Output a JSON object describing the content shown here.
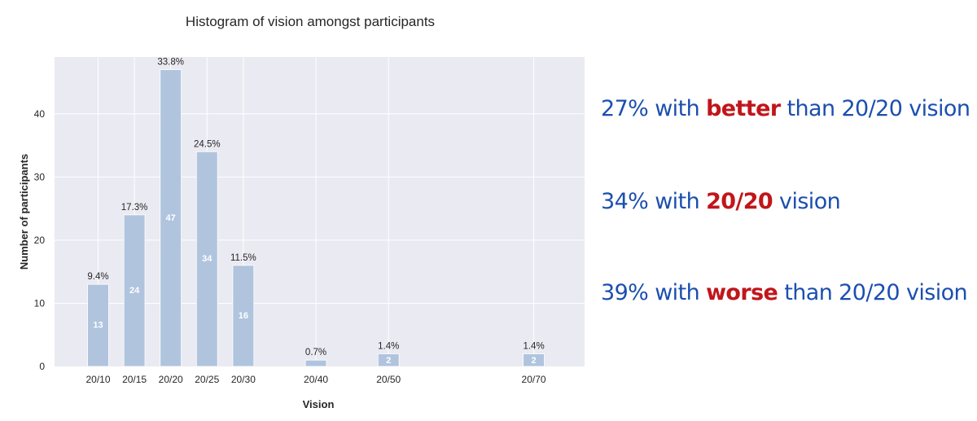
{
  "chart_data": {
    "type": "bar",
    "title": "Histogram of vision amongst participants",
    "xlabel": "Vision",
    "ylabel": "Number of participants",
    "ylim": [
      0,
      49
    ],
    "yticks": [
      0,
      10,
      20,
      30,
      40
    ],
    "x_scale": "denominator of Snellen fraction (20/x)",
    "x": [
      10,
      15,
      20,
      25,
      30,
      40,
      50,
      70
    ],
    "categories": [
      "20/10",
      "20/15",
      "20/20",
      "20/25",
      "20/30",
      "20/40",
      "20/50",
      "20/70"
    ],
    "values": [
      13,
      24,
      47,
      34,
      16,
      1,
      2,
      2
    ],
    "value_labels": [
      "13",
      "24",
      "47",
      "34",
      "16",
      "",
      "2",
      "2"
    ],
    "percent_labels": [
      "9.4%",
      "17.3%",
      "33.8%",
      "24.5%",
      "11.5%",
      "0.7%",
      "1.4%",
      "1.4%"
    ],
    "grid": true,
    "colors": {
      "bar": "#b0c4de",
      "background": "#eaeaf2",
      "grid": "#ffffff"
    }
  },
  "stats": [
    {
      "before": "27% with ",
      "highlight": "better",
      "after": " than 20/20 vision"
    },
    {
      "before": "34% with ",
      "highlight": "20/20",
      "after": " vision"
    },
    {
      "before": "39% with ",
      "highlight": "worse",
      "after": " than 20/20 vision"
    }
  ],
  "colors": {
    "stat_text": "#1b4faf",
    "stat_highlight": "#c0161b"
  }
}
